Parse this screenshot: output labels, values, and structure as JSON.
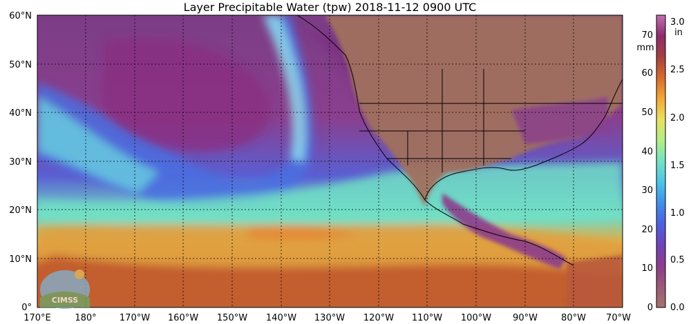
{
  "title": "Layer Precipitable Water (tpw)  2018-11-12 0900 UTC",
  "lat_labels": [
    "60°N",
    "50°N",
    "40°N",
    "30°N",
    "20°N",
    "10°N",
    "0°"
  ],
  "lon_labels": [
    "170°E",
    "180°",
    "170°W",
    "160°W",
    "150°W",
    "140°W",
    "130°W",
    "120°W",
    "110°W",
    "100°W",
    "90°W",
    "80°W",
    "70°W"
  ],
  "colorbar": {
    "unit_left": "mm",
    "unit_right": "in",
    "mm_ticks": [
      "70",
      "60",
      "50",
      "40",
      "30",
      "20",
      "10",
      "0"
    ],
    "in_ticks": [
      "3.0",
      "2.5",
      "2.0",
      "1.5",
      "1.0",
      "0.5",
      "0.0"
    ],
    "colors": [
      "#a6736c",
      "#9a5a78",
      "#8c3c8c",
      "#6f43b8",
      "#4e5fe0",
      "#3f8fe8",
      "#4cc4e8",
      "#74e2c2",
      "#b2ee88",
      "#e8e060",
      "#f2a838",
      "#d86a2e",
      "#a64040",
      "#8e2a6a",
      "#c070b0"
    ]
  },
  "logo": {
    "text": "CIMSS",
    "colors": {
      "sky": "#7fb3d5",
      "ground": "#6aa86a"
    }
  },
  "colors": {
    "background": "#ffffff",
    "dry_magenta": "#8c4a88",
    "land_brown": "#a0705e",
    "moist_blue": "#4a6ee0",
    "tropical_orange": "#d77a38",
    "grid": "#000000"
  }
}
